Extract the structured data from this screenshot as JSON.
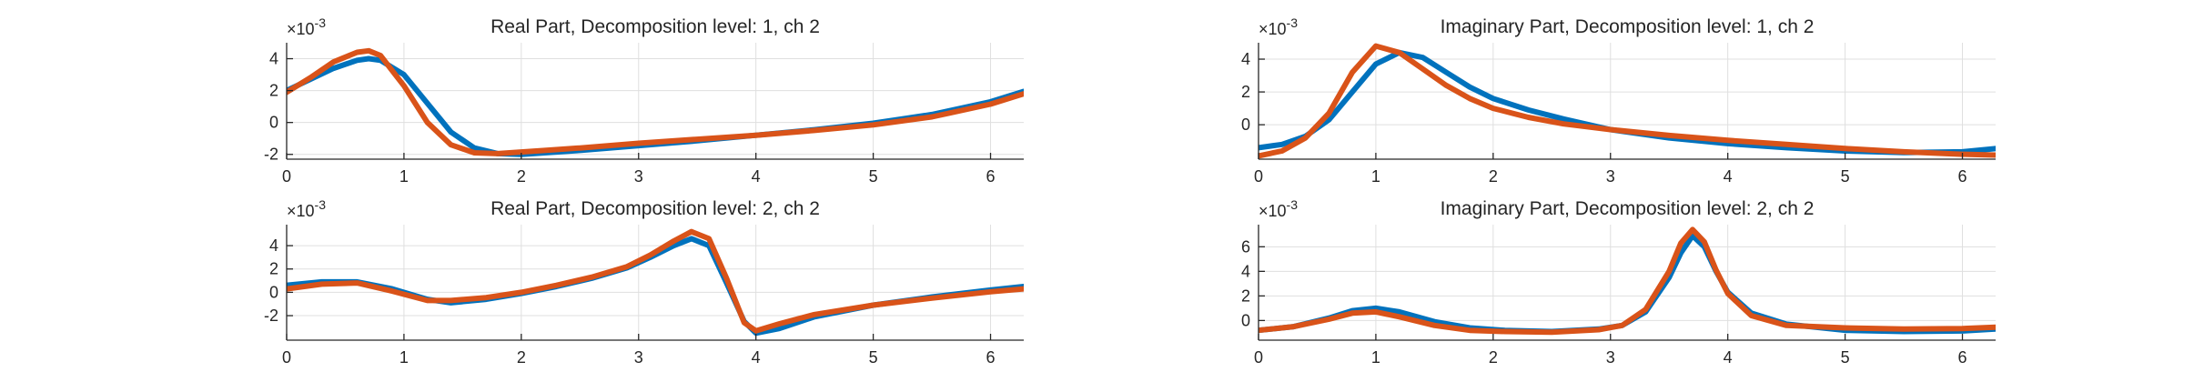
{
  "figure": {
    "background": "#ffffff",
    "colors": {
      "series1": "#0072BD",
      "series2": "#D95319",
      "grid": "#dfdfdf",
      "axis": "#262626"
    }
  },
  "chart_data": [
    {
      "type": "line",
      "title": "Real Part, Decomposition level: 1, ch 2",
      "exponent_label": "×10^-3",
      "xlim": [
        0,
        6.283
      ],
      "ylim": [
        -2.3,
        5.0
      ],
      "xticks": [
        0,
        1,
        2,
        3,
        4,
        5,
        6
      ],
      "xtick_labels": [
        "0",
        "1",
        "2",
        "3",
        "4",
        "5",
        "6"
      ],
      "yticks": [
        -2,
        0,
        2,
        4
      ],
      "ytick_labels": [
        "-2",
        "0",
        "2",
        "4"
      ],
      "grid": true,
      "series": [
        {
          "color": "#0072BD",
          "x": [
            0,
            0.2,
            0.4,
            0.6,
            0.7,
            0.8,
            1.0,
            1.2,
            1.4,
            1.6,
            1.8,
            2.0,
            2.2,
            2.5,
            3.0,
            3.5,
            4.0,
            4.5,
            5.0,
            5.5,
            6.0,
            6.283
          ],
          "y": [
            2.0,
            2.7,
            3.4,
            3.9,
            4.0,
            3.9,
            3.0,
            1.2,
            -0.6,
            -1.6,
            -1.95,
            -2.0,
            -1.9,
            -1.75,
            -1.45,
            -1.15,
            -0.8,
            -0.45,
            -0.05,
            0.5,
            1.3,
            1.95
          ]
        },
        {
          "color": "#D95319",
          "x": [
            0,
            0.2,
            0.4,
            0.6,
            0.7,
            0.8,
            1.0,
            1.2,
            1.4,
            1.6,
            1.8,
            2.0,
            2.2,
            2.5,
            3.0,
            3.5,
            4.0,
            4.5,
            5.0,
            5.5,
            6.0,
            6.283
          ],
          "y": [
            1.9,
            2.8,
            3.8,
            4.4,
            4.5,
            4.2,
            2.3,
            0.0,
            -1.4,
            -1.9,
            -1.95,
            -1.85,
            -1.75,
            -1.6,
            -1.3,
            -1.05,
            -0.8,
            -0.5,
            -0.15,
            0.35,
            1.15,
            1.8
          ]
        }
      ]
    },
    {
      "type": "line",
      "title": "Imaginary Part, Decomposition level: 1, ch 2",
      "exponent_label": "×10^-3",
      "xlim": [
        0,
        6.283
      ],
      "ylim": [
        -2.1,
        5.0
      ],
      "xticks": [
        0,
        1,
        2,
        3,
        4,
        5,
        6
      ],
      "xtick_labels": [
        "0",
        "1",
        "2",
        "3",
        "4",
        "5",
        "6"
      ],
      "yticks": [
        0,
        2,
        4
      ],
      "ytick_labels": [
        "0",
        "2",
        "4"
      ],
      "grid": true,
      "series": [
        {
          "color": "#0072BD",
          "x": [
            0,
            0.2,
            0.4,
            0.6,
            0.8,
            1.0,
            1.2,
            1.4,
            1.6,
            1.8,
            2.0,
            2.3,
            2.6,
            3.0,
            3.5,
            4.0,
            4.5,
            5.0,
            5.5,
            6.0,
            6.283
          ],
          "y": [
            -1.4,
            -1.2,
            -0.7,
            0.3,
            2.0,
            3.7,
            4.4,
            4.1,
            3.2,
            2.3,
            1.6,
            0.9,
            0.35,
            -0.3,
            -0.8,
            -1.15,
            -1.4,
            -1.6,
            -1.7,
            -1.65,
            -1.45
          ]
        },
        {
          "color": "#D95319",
          "x": [
            0,
            0.2,
            0.4,
            0.6,
            0.8,
            1.0,
            1.2,
            1.4,
            1.6,
            1.8,
            2.0,
            2.3,
            2.6,
            3.0,
            3.5,
            4.0,
            4.5,
            5.0,
            5.5,
            6.0,
            6.283
          ],
          "y": [
            -1.9,
            -1.6,
            -0.8,
            0.7,
            3.2,
            4.8,
            4.4,
            3.4,
            2.4,
            1.6,
            1.0,
            0.45,
            0.05,
            -0.3,
            -0.65,
            -0.95,
            -1.2,
            -1.45,
            -1.65,
            -1.8,
            -1.85
          ]
        }
      ]
    },
    {
      "type": "line",
      "title": "Real Part, Decomposition level: 2, ch 2",
      "exponent_label": "×10^-3",
      "xlim": [
        0,
        6.283
      ],
      "ylim": [
        -4.1,
        5.8
      ],
      "xticks": [
        0,
        1,
        2,
        3,
        4,
        5,
        6
      ],
      "xtick_labels": [
        "0",
        "1",
        "2",
        "3",
        "4",
        "5",
        "6"
      ],
      "yticks": [
        -2,
        0,
        2,
        4
      ],
      "ytick_labels": [
        "-2",
        "0",
        "2",
        "4"
      ],
      "grid": true,
      "series": [
        {
          "color": "#0072BD",
          "x": [
            0,
            0.3,
            0.6,
            0.9,
            1.2,
            1.4,
            1.7,
            2.0,
            2.3,
            2.6,
            2.9,
            3.1,
            3.3,
            3.45,
            3.6,
            3.75,
            3.9,
            4.0,
            4.2,
            4.5,
            5.0,
            5.5,
            6.0,
            6.283
          ],
          "y": [
            0.6,
            0.9,
            0.9,
            0.3,
            -0.6,
            -0.9,
            -0.6,
            -0.1,
            0.5,
            1.2,
            2.1,
            3.0,
            4.0,
            4.6,
            4.0,
            0.8,
            -2.5,
            -3.5,
            -3.1,
            -2.1,
            -1.1,
            -0.4,
            0.2,
            0.5
          ]
        },
        {
          "color": "#D95319",
          "x": [
            0,
            0.3,
            0.6,
            0.9,
            1.2,
            1.4,
            1.7,
            2.0,
            2.3,
            2.6,
            2.9,
            3.1,
            3.3,
            3.45,
            3.6,
            3.75,
            3.9,
            4.0,
            4.2,
            4.5,
            5.0,
            5.5,
            6.0,
            6.283
          ],
          "y": [
            0.3,
            0.7,
            0.8,
            0.1,
            -0.7,
            -0.7,
            -0.45,
            0.0,
            0.6,
            1.3,
            2.2,
            3.2,
            4.4,
            5.2,
            4.6,
            1.2,
            -2.6,
            -3.3,
            -2.7,
            -1.9,
            -1.1,
            -0.5,
            0.05,
            0.3
          ]
        }
      ]
    },
    {
      "type": "line",
      "title": "Imaginary Part, Decomposition level: 2, ch 2",
      "exponent_label": "×10^-3",
      "xlim": [
        0,
        6.283
      ],
      "ylim": [
        -1.6,
        7.8
      ],
      "xticks": [
        0,
        1,
        2,
        3,
        4,
        5,
        6
      ],
      "xtick_labels": [
        "0",
        "1",
        "2",
        "3",
        "4",
        "5",
        "6"
      ],
      "yticks": [
        0,
        2,
        4,
        6
      ],
      "ytick_labels": [
        "0",
        "2",
        "4",
        "6"
      ],
      "grid": true,
      "series": [
        {
          "color": "#0072BD",
          "x": [
            0,
            0.3,
            0.6,
            0.8,
            1.0,
            1.2,
            1.5,
            1.8,
            2.1,
            2.5,
            2.9,
            3.1,
            3.3,
            3.5,
            3.6,
            3.7,
            3.8,
            3.9,
            4.0,
            4.2,
            4.5,
            5.0,
            5.5,
            6.0,
            6.283
          ],
          "y": [
            -0.8,
            -0.5,
            0.2,
            0.8,
            1.0,
            0.7,
            -0.1,
            -0.6,
            -0.8,
            -0.9,
            -0.7,
            -0.4,
            0.7,
            3.5,
            5.5,
            6.9,
            6.0,
            4.0,
            2.3,
            0.6,
            -0.3,
            -0.8,
            -0.9,
            -0.85,
            -0.7
          ]
        },
        {
          "color": "#D95319",
          "x": [
            0,
            0.3,
            0.6,
            0.8,
            1.0,
            1.2,
            1.5,
            1.8,
            2.1,
            2.5,
            2.9,
            3.1,
            3.3,
            3.5,
            3.6,
            3.7,
            3.8,
            3.9,
            4.0,
            4.2,
            4.5,
            5.0,
            5.5,
            6.0,
            6.283
          ],
          "y": [
            -0.8,
            -0.5,
            0.1,
            0.6,
            0.7,
            0.3,
            -0.4,
            -0.8,
            -0.9,
            -0.95,
            -0.75,
            -0.4,
            0.9,
            4.0,
            6.3,
            7.4,
            6.4,
            4.1,
            2.2,
            0.4,
            -0.4,
            -0.6,
            -0.7,
            -0.65,
            -0.55
          ]
        }
      ]
    }
  ]
}
